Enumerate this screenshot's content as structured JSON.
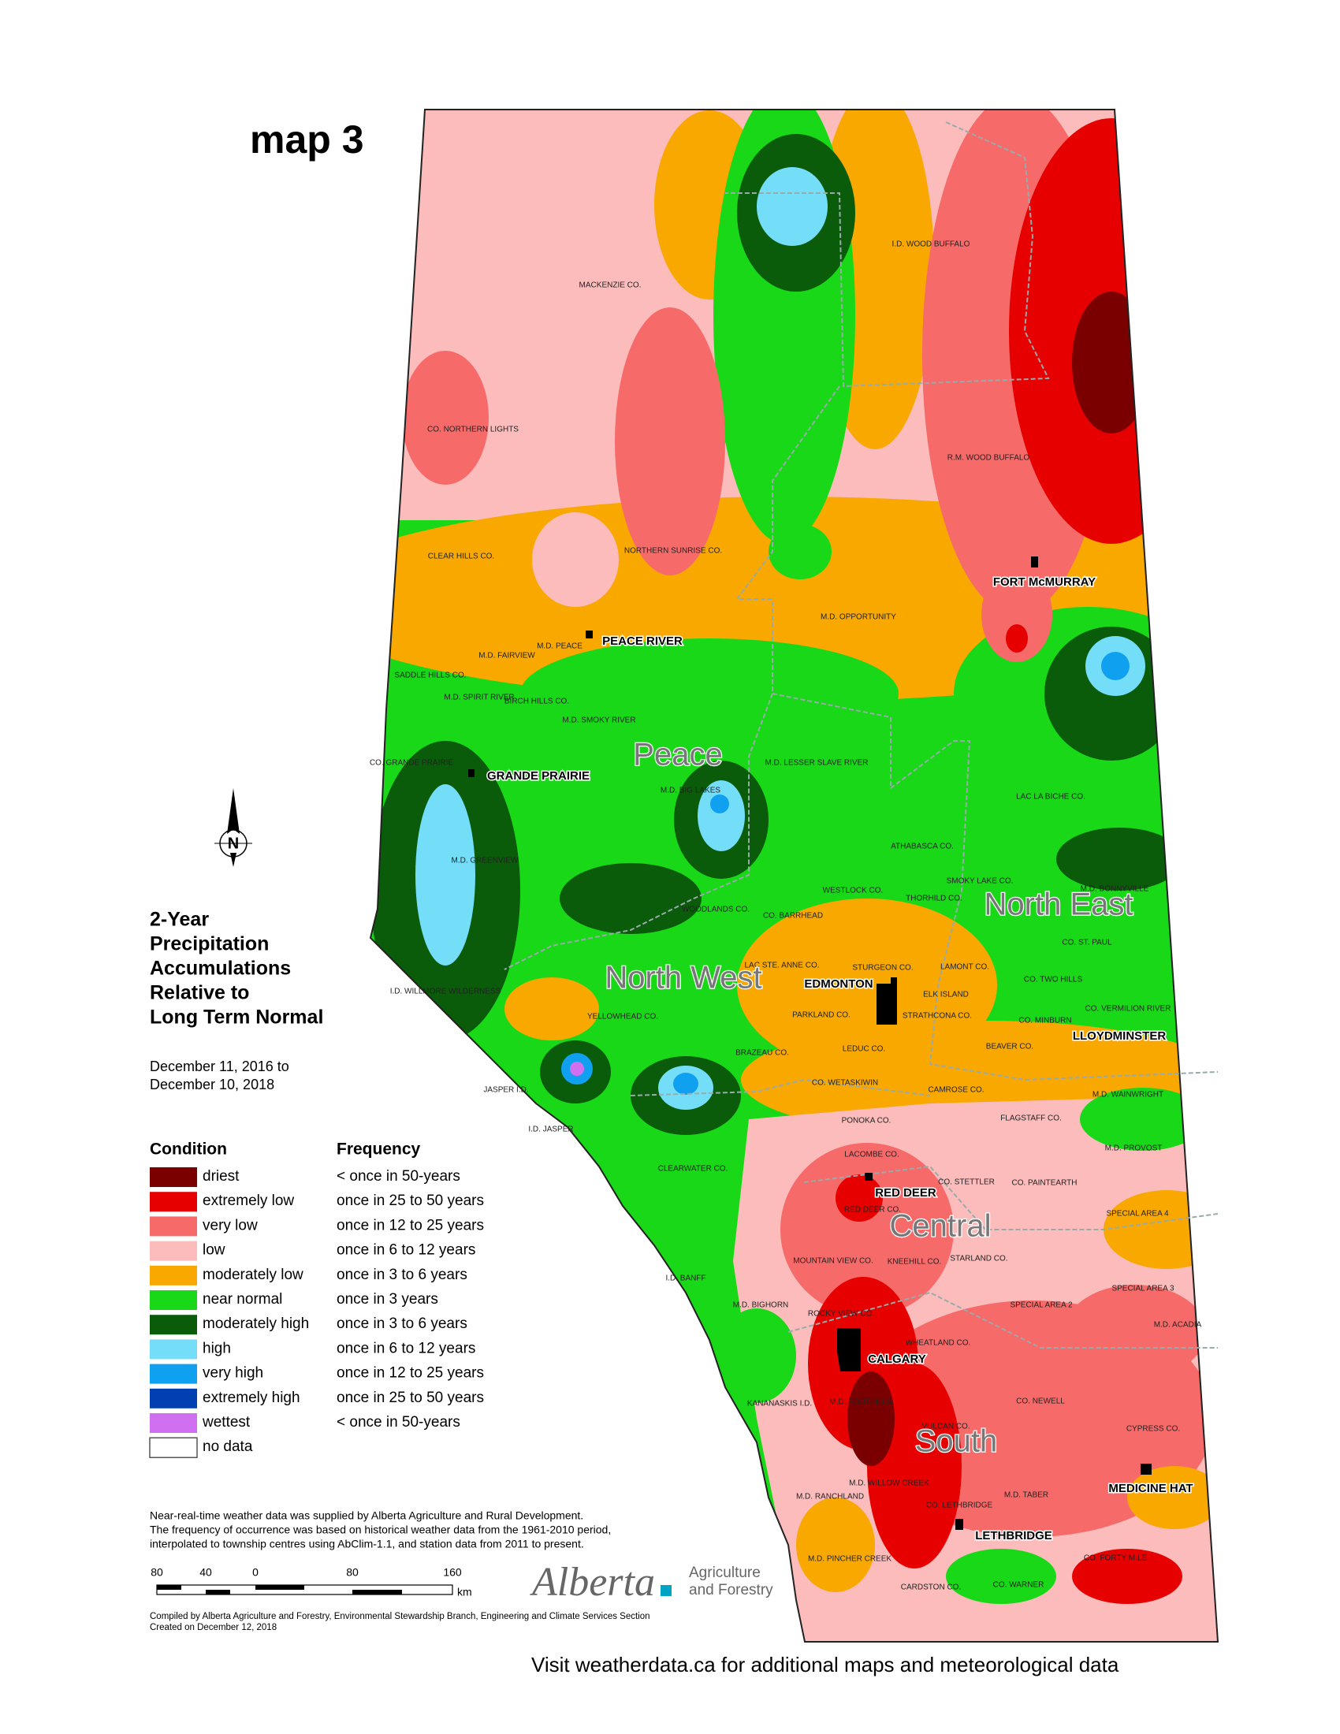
{
  "title": "map 3",
  "map_title": [
    "2-Year",
    "Precipitation",
    "Accumulations",
    "Relative to",
    "Long Term Normal"
  ],
  "period": [
    "December 11, 2016 to",
    "December 10, 2018"
  ],
  "north_label": "N",
  "legend": {
    "condition_header": "Condition",
    "frequency_header": "Frequency",
    "items": [
      {
        "condition": "driest",
        "frequency": "< once in 50-years",
        "color": "#7a0000"
      },
      {
        "condition": "extremely low",
        "frequency": "once in 25 to 50 years",
        "color": "#e60000"
      },
      {
        "condition": "very low",
        "frequency": "once in 12 to 25 years",
        "color": "#f76a6a"
      },
      {
        "condition": "low",
        "frequency": "once in 6 to 12 years",
        "color": "#fcbcbc"
      },
      {
        "condition": "moderately low",
        "frequency": "once in 3 to 6 years",
        "color": "#f9a800"
      },
      {
        "condition": "near normal",
        "frequency": "once in 3 years",
        "color": "#18d818"
      },
      {
        "condition": "moderately high",
        "frequency": "once in 3 to 6 years",
        "color": "#0a5c0a"
      },
      {
        "condition": "high",
        "frequency": "once in 6 to 12 years",
        "color": "#74def8"
      },
      {
        "condition": "very high",
        "frequency": "once in 12 to 25 years",
        "color": "#10a0f0"
      },
      {
        "condition": "extremely high",
        "frequency": "once in 25 to 50 years",
        "color": "#0040b0"
      },
      {
        "condition": "wettest",
        "frequency": "< once in 50-years",
        "color": "#d070f0"
      },
      {
        "condition": "no data",
        "color": "#ffffff"
      }
    ]
  },
  "notes": [
    "Near-real-time weather data was supplied by Alberta Agriculture and Rural Development.",
    "The frequency of occurrence was based on historical weather data from the 1961-2010 period,",
    "interpolated to township centres using AbClim-1.1, and station data from 2011 to present."
  ],
  "scale": {
    "ticks": [
      "80",
      "40",
      "0",
      "80",
      "160"
    ],
    "unit": "km"
  },
  "logo": {
    "name": "Alberta",
    "dept": [
      "Agriculture",
      "and Forestry"
    ]
  },
  "credits": [
    "Compiled by Alberta Agriculture and Forestry, Environmental Stewardship Branch, Engineering and Climate Services Section",
    "Created on December 12, 2018"
  ],
  "footer": "Visit weatherdata.ca for additional maps and meteorological data",
  "regions": [
    "Peace",
    "North West",
    "North East",
    "Central",
    "South"
  ],
  "cities": [
    "FORT McMURRAY",
    "PEACE RIVER",
    "GRANDE PRAIRIE",
    "EDMONTON",
    "LLOYDMINSTER",
    "RED DEER",
    "CALGARY",
    "MEDICINE HAT",
    "LETHBRIDGE"
  ],
  "municipalities": [
    "I.D. WOOD BUFFALO",
    "MACKENZIE CO.",
    "CO. NORTHERN LIGHTS",
    "R.M. WOOD BUFFALO",
    "NORTHERN SUNRISE CO.",
    "CLEAR HILLS CO.",
    "M.D. OPPORTUNITY",
    "M.D. PEACE",
    "M.D. FAIRVIEW",
    "SADDLE HILLS CO.",
    "M.D. SPIRIT RIVER",
    "BIRCH HILLS CO.",
    "M.D. SMOKY RIVER",
    "CO. GRANDE PRAIRIE",
    "M.D. LESSER SLAVE RIVER",
    "M.D. BIG LAKES",
    "LAC LA BICHE CO.",
    "ATHABASCA CO.",
    "M.D. GREENVIEW",
    "WESTLOCK CO.",
    "SMOKY LAKE CO.",
    "M.D. BONNYVILLE",
    "THORHILD CO.",
    "WOODLANDS CO.",
    "CO. BARRHEAD",
    "CO. ST. PAUL",
    "LAC STE. ANNE CO.",
    "STURGEON CO.",
    "LAMONT CO.",
    "CO. TWO HILLS",
    "I.D. WILLMORE WILDERNESS",
    "ELK ISLAND",
    "CO. VERMILION RIVER",
    "YELLOWHEAD CO.",
    "PARKLAND CO.",
    "STRATHCONA CO.",
    "CO. MINBURN",
    "LEDUC CO.",
    "BEAVER CO.",
    "BRAZEAU CO.",
    "CO. WETASKIWIN",
    "CAMROSE CO.",
    "JASPER I.D.",
    "M.D. WAINWRIGHT",
    "I.D. JASPER",
    "PONOKA CO.",
    "FLAGSTAFF CO.",
    "M.D. PROVOST",
    "LACOMBE CO.",
    "CLEARWATER CO.",
    "CO. STETTLER",
    "CO. PAINTEARTH",
    "RED DEER CO.",
    "SPECIAL AREA 4",
    "MOUNTAIN VIEW CO.",
    "KNEEHILL CO.",
    "STARLAND CO.",
    "I.D. BANFF",
    "SPECIAL AREA 3",
    "M.D. BIGHORN",
    "SPECIAL AREA 2",
    "ROCKY VIEW CO.",
    "M.D. ACADIA",
    "WHEATLAND CO.",
    "KANANASKIS I.D.",
    "M.D. FOOTHILLS",
    "CO. NEWELL",
    "VULCAN CO.",
    "CYPRESS CO.",
    "M.D. WILLOW CREEK",
    "M.D. RANCHLAND",
    "M.D. TABER",
    "CO. LETHBRIDGE",
    "M.D. PINCHER CREEK",
    "CO. FORTY MILE",
    "CARDSTON CO.",
    "CO. WARNER"
  ]
}
